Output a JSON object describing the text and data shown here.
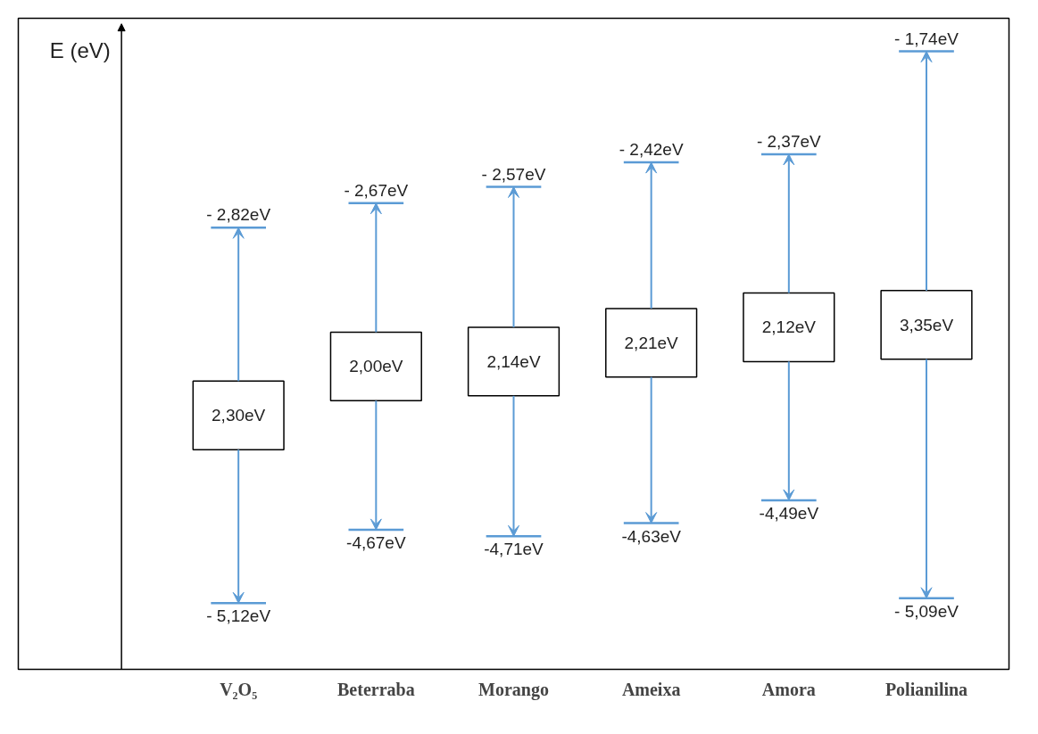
{
  "chart_data": {
    "type": "other",
    "ylabel": "E (eV)",
    "categories": [
      "V₂O₅",
      "Beterraba",
      "Morango",
      "Ameixa",
      "Amora",
      "Polianilina"
    ],
    "values": [
      2.3,
      2.0,
      2.14,
      2.21,
      2.12,
      3.35
    ],
    "value_labels": [
      "2,30eV",
      "2,00eV",
      "2,14eV",
      "2,21eV",
      "2,12eV",
      "3,35eV"
    ],
    "series": [
      {
        "color": "#5b9bd5",
        "values": [
          -2.82,
          -2.67,
          -2.57,
          -2.42,
          -2.37,
          -1.74
        ],
        "value_labels": [
          "- 2,82eV",
          "- 2,67eV",
          "- 2,57eV",
          "- 2,42eV",
          "- 2,37eV",
          "- 1,74eV"
        ]
      },
      {
        "color": "#5b9bd5",
        "values": [
          -5.12,
          -4.67,
          -4.71,
          -4.63,
          -4.49,
          -5.09
        ],
        "value_labels": [
          "- 5,12eV",
          "-4,67eV",
          "-4,71eV",
          "-4,63eV",
          "-4,49eV",
          "- 5,09eV"
        ]
      }
    ]
  }
}
